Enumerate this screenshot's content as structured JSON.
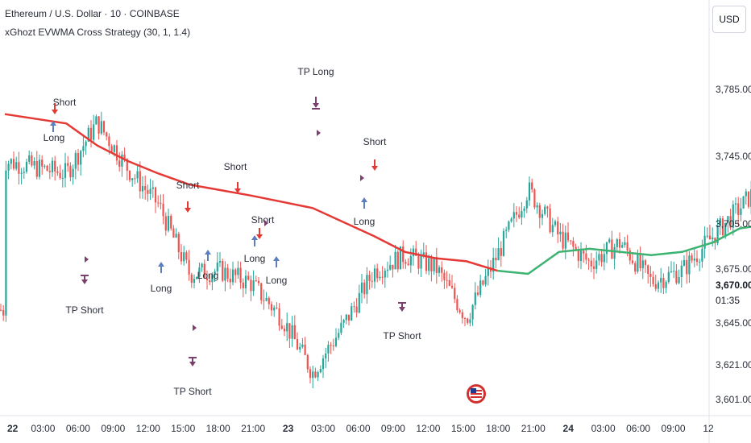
{
  "header": {
    "symbol": "Ethereum / U.S. Dollar · 10 · COINBASE",
    "indicator": "xGhozt EVWMA Cross Strategy (30, 1, 1.4)"
  },
  "currency_button": "USD",
  "price_axis": {
    "ticks": [
      "3,785.00",
      "3,745.00",
      "3,705.00",
      "3,675.00",
      "3,645.00",
      "3,621.00",
      "3,601.00"
    ],
    "last_price": "3,670.00",
    "countdown": "01:35"
  },
  "time_axis": {
    "ticks": [
      "22",
      "03:00",
      "06:00",
      "09:00",
      "12:00",
      "15:00",
      "18:00",
      "21:00",
      "23",
      "03:00",
      "06:00",
      "09:00",
      "12:00",
      "15:00",
      "18:00",
      "21:00",
      "24",
      "03:00",
      "06:00",
      "09:00",
      "12"
    ]
  },
  "colors": {
    "up": "#26a69a",
    "down": "#ef5350",
    "ma_up": "#3cb371",
    "ma_down": "#e53935",
    "long_arrow": "#5b7fbd",
    "short_arrow": "#e53935",
    "tp_marker": "#7b3f6e",
    "last_price_bg": "#26a69a"
  },
  "chart_data": {
    "type": "candlestick",
    "timeframe": "10",
    "series": [
      {
        "name": "Close",
        "x": [
          "22 00:00",
          "22 02:00",
          "22 03:00",
          "22 04:00",
          "22 05:00",
          "22 06:00",
          "22 07:00",
          "22 08:00",
          "22 09:00",
          "22 10:00",
          "22 11:00",
          "22 12:00",
          "22 13:00",
          "22 14:00",
          "22 15:00",
          "22 16:00",
          "22 17:00",
          "22 18:00",
          "22 19:00",
          "22 20:00",
          "22 21:00",
          "22 22:00",
          "22 23:00",
          "23 00:00",
          "23 01:00",
          "23 02:00",
          "23 03:00",
          "23 04:00",
          "23 05:00",
          "23 06:00",
          "23 07:00",
          "23 08:00",
          "23 09:00",
          "23 10:00",
          "23 11:00",
          "23 12:00"
        ],
        "values": [
          3760,
          3752,
          3785,
          3755,
          3732,
          3688,
          3690,
          3682,
          3660,
          3625,
          3655,
          3690,
          3700,
          3692,
          3660,
          3700,
          3742,
          3712,
          3695,
          3708,
          3683,
          3690,
          3712,
          3730,
          3752,
          3740,
          3748,
          3752,
          3738,
          3730,
          3700,
          3688,
          3672,
          3678,
          3655,
          3665
        ]
      },
      {
        "name": "EVWMA",
        "x": [
          "22 00:00",
          "22 02:00",
          "22 03:00",
          "22 04:00",
          "22 05:00",
          "22 06:00",
          "22 08:00",
          "22 10:00",
          "22 12:00",
          "22 13:00",
          "22 14:00",
          "22 15:00",
          "22 16:00",
          "22 17:00",
          "22 18:00",
          "22 19:00",
          "22 20:00",
          "22 21:00",
          "22 22:00",
          "22 23:00",
          "23 00:00",
          "23 01:00",
          "23 02:00",
          "23 03:00",
          "23 04:00",
          "23 05:00",
          "23 06:00",
          "23 07:00",
          "23 08:00",
          "23 09:00",
          "23 10:00",
          "23 11:00"
        ],
        "values": [
          3790,
          3784,
          3770,
          3760,
          3752,
          3745,
          3738,
          3730,
          3712,
          3702,
          3698,
          3696,
          3690,
          3688,
          3702,
          3704,
          3702,
          3700,
          3702,
          3708,
          3717,
          3720,
          3724,
          3728,
          3730,
          3731,
          3730,
          3726,
          3720,
          3712,
          3702,
          3695
        ]
      }
    ],
    "signals": [
      {
        "label": "Short",
        "time": "22 03:00"
      },
      {
        "label": "Long",
        "time": "22 03:00"
      },
      {
        "label": "TP Short",
        "time": "22 06:00"
      },
      {
        "label": "Long",
        "time": "22 11:00"
      },
      {
        "label": "Short",
        "time": "22 14:00"
      },
      {
        "label": "Long",
        "time": "22 15:00"
      },
      {
        "label": "TP Short",
        "time": "22 15:00"
      },
      {
        "label": "Short",
        "time": "22 17:00"
      },
      {
        "label": "Short",
        "time": "22 20:00"
      },
      {
        "label": "Long",
        "time": "22 20:00"
      },
      {
        "label": "Long",
        "time": "22 21:00"
      },
      {
        "label": "TP Long",
        "time": "23 02:00"
      },
      {
        "label": "Short",
        "time": "23 06:00"
      },
      {
        "label": "Long",
        "time": "23 06:00"
      },
      {
        "label": "TP Short",
        "time": "23 09:00"
      }
    ],
    "yrange": [
      3598,
      3832
    ],
    "last_price": 3670.0
  }
}
